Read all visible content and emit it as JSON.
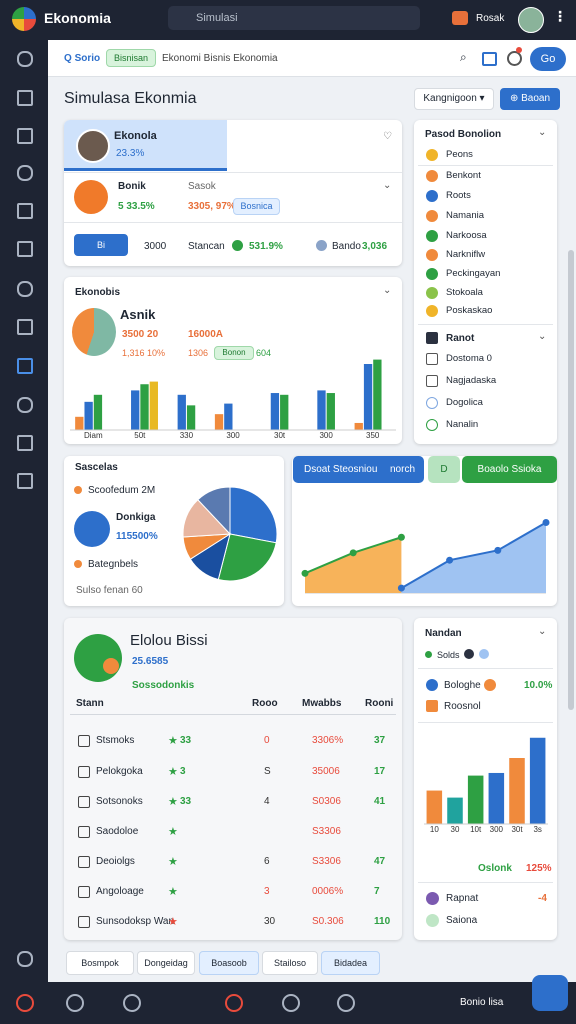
{
  "topbar": {
    "logo": "Ekonomia",
    "search": "Simulasi",
    "user": "Rosak"
  },
  "toolbar": {
    "search": "Sorio",
    "chip": "Bisnisan",
    "breadcrumb": "Ekonomi Bisnis Ekonomia",
    "button": "Go"
  },
  "page": {
    "title": "Simulasa Ekonmia",
    "dropdown": "Kangnigoon",
    "button": "Baoan"
  },
  "profile_card": {
    "name": "Ekonola",
    "stat": "23.3%",
    "item": "Bonik",
    "item_value": "5 33.5%",
    "status_label": "Sasok",
    "status_value": "3305, 97%",
    "chip": "Bosnica",
    "button": "Bi",
    "amount": "3000",
    "label": "Stancan",
    "value": "531.9%",
    "brand": "Bando",
    "brand_value": "3,036"
  },
  "side_list": {
    "title": "Pasod Bonolion",
    "items": [
      "Peons",
      "Benkont",
      "Roots",
      "Namania",
      "Narkoosa",
      "Narkniflw",
      "Peckingayan",
      "Stokoala",
      "Poskaskao"
    ],
    "section": "Ranot",
    "section_items": [
      "Dostoma 0",
      "Nagjadaska",
      "Dogolica",
      "Nanalin"
    ]
  },
  "summary_card": {
    "title": "Ekonobis",
    "name": "Asnik",
    "value_a": "3500 20",
    "value_b": "16000A",
    "value_c": "1,316 10%",
    "value_d": "1306",
    "chip": "Bonon",
    "value_e": "604"
  },
  "sales_card": {
    "title": "Sascelas",
    "item_a": "Scoofedum 2M",
    "name": "Donkiga",
    "value": "115500%",
    "item_b": "Bategnbels",
    "footer": "Sulso fenan 60"
  },
  "tabs": [
    "Dsoat Steosniou",
    "norch",
    "D",
    "Boaolo Ssioka"
  ],
  "table_card": {
    "title": "Elolou Bissi",
    "value": "25.6585",
    "subtitle": "Sossodonkis"
  },
  "table": {
    "columns": [
      "Stann",
      "Rooo",
      "Mwabbs",
      "Rooni"
    ],
    "rows": [
      [
        "Stsmoks",
        "33",
        "0",
        "3306%",
        "37"
      ],
      [
        "Pelokgoka",
        "3",
        "S",
        "35006",
        "17"
      ],
      [
        "Sotsonoks",
        "33",
        "4",
        "S0306",
        "41"
      ],
      [
        "Saodoloe",
        "",
        "",
        "S3306",
        ""
      ],
      [
        "Deoiolgs",
        "",
        "6",
        "S3306",
        "47"
      ],
      [
        "Angoloage",
        "",
        "3",
        "0006%",
        "7"
      ],
      [
        "Sunsodoksp Wan",
        "",
        "30",
        "S0.306",
        "110"
      ]
    ]
  },
  "right_card": {
    "title": "Nandan",
    "legend": "Solds",
    "item_a": "Bologhe",
    "item_a_value": "10.0%",
    "item_b": "Roosnol",
    "footer_label": "Oslonk",
    "footer_value": "125%",
    "item_c": "Rapnat",
    "item_c_value": "-4",
    "item_d": "Saiona"
  },
  "pills": [
    "Bosmpok",
    "Dongeidag",
    "Boasoob",
    "Stailoso",
    "Bidadea"
  ],
  "bottom_nav": {
    "label": "Bonio lisa"
  },
  "chart_data": [
    {
      "type": "bar",
      "categories": [
        "Diam",
        "50t",
        "330",
        "300",
        "30t",
        "300",
        "350"
      ],
      "ylim": [
        0,
        100
      ],
      "series": [
        {
          "name": "Orange",
          "color": "#f08a3c",
          "values": [
            15,
            0,
            0,
            18,
            0,
            0,
            8
          ]
        },
        {
          "name": "Blue",
          "color": "#2d6fcb",
          "values": [
            32,
            45,
            40,
            30,
            42,
            45,
            75
          ]
        },
        {
          "name": "Green",
          "color": "#2ea043",
          "values": [
            40,
            52,
            28,
            0,
            40,
            42,
            80
          ]
        },
        {
          "name": "Yellow",
          "color": "#e8b923",
          "values": [
            0,
            55,
            0,
            0,
            0,
            0,
            0
          ]
        }
      ]
    },
    {
      "type": "pie",
      "values": [
        28,
        26,
        12,
        8,
        14,
        12
      ],
      "colors": [
        "#2d6fcb",
        "#2ea043",
        "#1a4fa0",
        "#f08a3c",
        "#e8b6a0",
        "#5a7ab0"
      ]
    },
    {
      "type": "area",
      "x": [
        0,
        1,
        2,
        3,
        4,
        5
      ],
      "xlim": [
        0,
        5
      ],
      "ylim": [
        0,
        100
      ],
      "series": [
        {
          "name": "Orange",
          "color": "#f7b35a",
          "line": "#2ea043",
          "values": [
            24,
            49,
            68,
            null,
            null,
            null
          ]
        },
        {
          "name": "Blue",
          "color": "#9fc3f2",
          "line": "#2d6fcb",
          "values": [
            null,
            null,
            6,
            40,
            52,
            86
          ]
        }
      ]
    },
    {
      "type": "bar",
      "categories": [
        "10",
        "30",
        "10t",
        "300",
        "30t",
        "3s"
      ],
      "ylim": [
        0,
        100
      ],
      "values": [
        38,
        30,
        55,
        58,
        75,
        98
      ],
      "colors": [
        "#f08a3c",
        "#20a39e",
        "#2ea043",
        "#2d6fcb",
        "#f08a3c",
        "#2d6fcb"
      ]
    }
  ]
}
